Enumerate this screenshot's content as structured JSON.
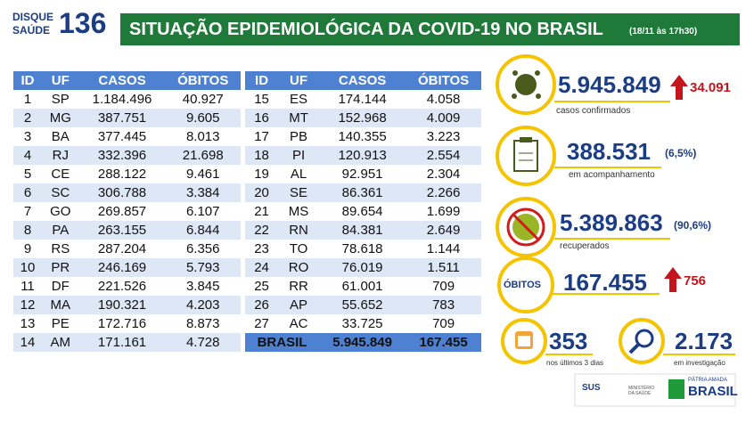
{
  "header": {
    "logo_top": "DISQUE",
    "logo_bottom": "SAÚDE",
    "logo_number": "136",
    "title": "SITUAÇÃO EPIDEMIOLÓGICA DA COVID-19 NO BRASIL",
    "subtitle": "(18/11 às 17h30)"
  },
  "table": {
    "columns": [
      "ID",
      "UF",
      "CASOS",
      "ÓBITOS"
    ],
    "left_rows": [
      [
        "1",
        "SP",
        "1.184.496",
        "40.927"
      ],
      [
        "2",
        "MG",
        "387.751",
        "9.605"
      ],
      [
        "3",
        "BA",
        "377.445",
        "8.013"
      ],
      [
        "4",
        "RJ",
        "332.396",
        "21.698"
      ],
      [
        "5",
        "CE",
        "288.122",
        "9.461"
      ],
      [
        "6",
        "SC",
        "306.788",
        "3.384"
      ],
      [
        "7",
        "GO",
        "269.857",
        "6.107"
      ],
      [
        "8",
        "PA",
        "263.155",
        "6.844"
      ],
      [
        "9",
        "RS",
        "287.204",
        "6.356"
      ],
      [
        "10",
        "PR",
        "246.169",
        "5.793"
      ],
      [
        "11",
        "DF",
        "221.526",
        "3.845"
      ],
      [
        "12",
        "MA",
        "190.321",
        "4.203"
      ],
      [
        "13",
        "PE",
        "172.716",
        "8.873"
      ],
      [
        "14",
        "AM",
        "171.161",
        "4.728"
      ]
    ],
    "right_rows": [
      [
        "15",
        "ES",
        "174.144",
        "4.058"
      ],
      [
        "16",
        "MT",
        "152.968",
        "4.009"
      ],
      [
        "17",
        "PB",
        "140.355",
        "3.223"
      ],
      [
        "18",
        "PI",
        "120.913",
        "2.554"
      ],
      [
        "19",
        "AL",
        "92.951",
        "2.304"
      ],
      [
        "20",
        "SE",
        "86.361",
        "2.266"
      ],
      [
        "21",
        "MS",
        "89.654",
        "1.699"
      ],
      [
        "22",
        "RN",
        "84.381",
        "2.649"
      ],
      [
        "23",
        "TO",
        "78.618",
        "1.144"
      ],
      [
        "24",
        "RO",
        "76.019",
        "1.511"
      ],
      [
        "25",
        "RR",
        "61.001",
        "709"
      ],
      [
        "26",
        "AP",
        "55.652",
        "783"
      ],
      [
        "27",
        "AC",
        "33.725",
        "709"
      ]
    ],
    "total_row": [
      "BRASIL",
      "5.945.849",
      "167.455"
    ]
  },
  "stats": {
    "confirmed": {
      "value": "5.945.849",
      "delta": "34.091",
      "label": "casos confirmados"
    },
    "monitoring": {
      "value": "388.531",
      "share": "(6,5%)",
      "label": "em acompanhamento"
    },
    "recovered": {
      "value": "5.389.863",
      "share": "(90,6%)",
      "label": "recuperados"
    },
    "deaths": {
      "badge": "ÓBITOS",
      "value": "167.455",
      "delta": "756"
    },
    "recent": {
      "value": "353",
      "label": "nos últimos 3 dias"
    },
    "investigation": {
      "value": "2.173",
      "label": "em investigação"
    }
  },
  "footer": {
    "sus": "SUS",
    "ministry": "MINISTÉRIO DA SAÚDE",
    "motto": "PÁTRIA AMADA",
    "country": "BRASIL"
  }
}
